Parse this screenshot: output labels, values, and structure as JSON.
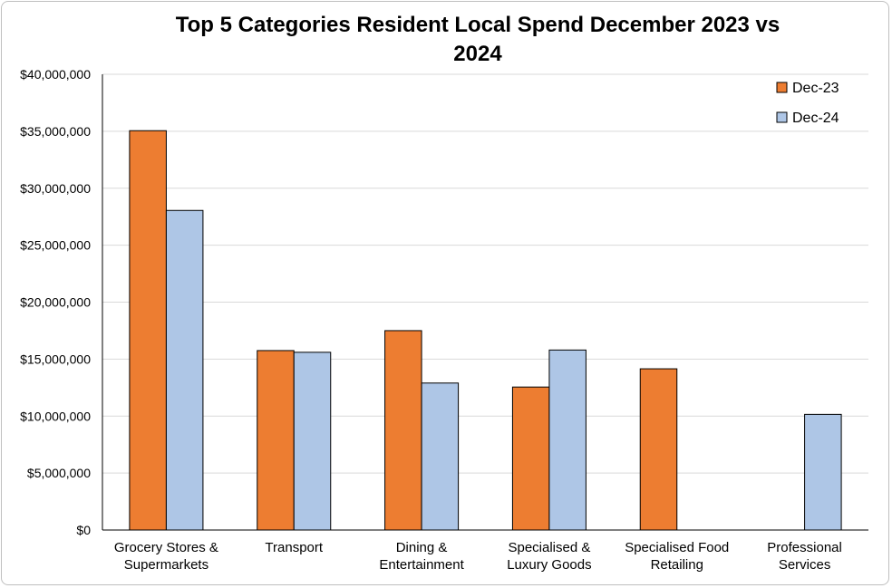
{
  "chart_data": {
    "type": "bar",
    "title": "Top 5 Categories Resident Local Spend December 2023 vs 2024",
    "title_lines": [
      "Top 5 Categories Resident Local Spend December 2023 vs",
      "2024"
    ],
    "categories": [
      [
        "Grocery Stores &",
        "Supermarkets"
      ],
      [
        "Transport"
      ],
      [
        "Dining &",
        "Entertainment"
      ],
      [
        "Specialised &",
        "Luxury Goods"
      ],
      [
        "Specialised Food",
        "Retailing"
      ],
      [
        "Professional",
        "Services"
      ]
    ],
    "series": [
      {
        "name": "Dec-23",
        "color": "#ed7d31",
        "values": [
          35050000,
          15750000,
          17500000,
          12550000,
          14150000,
          null
        ]
      },
      {
        "name": "Dec-24",
        "color": "#aec6e6",
        "values": [
          28050000,
          15600000,
          12900000,
          15800000,
          null,
          10150000
        ]
      }
    ],
    "ylim": [
      0,
      40000000
    ],
    "y_ticks": [
      0,
      5000000,
      10000000,
      15000000,
      20000000,
      25000000,
      30000000,
      35000000,
      40000000
    ],
    "y_tick_labels": [
      "$0",
      "$5,000,000",
      "$10,000,000",
      "$15,000,000",
      "$20,000,000",
      "$25,000,000",
      "$30,000,000",
      "$35,000,000",
      "$40,000,000"
    ],
    "xlabel": "",
    "ylabel": "",
    "grid": true,
    "legend_position": "top-right"
  }
}
